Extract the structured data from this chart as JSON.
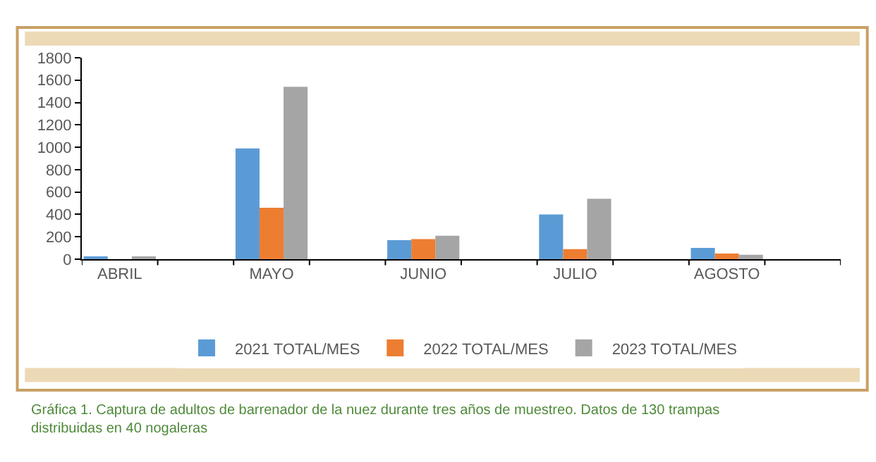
{
  "chart_data": {
    "type": "bar",
    "categories": [
      "ABRIL",
      null,
      "MAYO",
      null,
      "JUNIO",
      null,
      "JULIO",
      null,
      "AGOSTO",
      null
    ],
    "series": [
      {
        "name": "2021 TOTAL/MES",
        "color": "#5b9bd5",
        "values": [
          20,
          null,
          990,
          null,
          170,
          null,
          400,
          null,
          100,
          null
        ]
      },
      {
        "name": "2022 TOTAL/MES",
        "color": "#ed7d31",
        "values": [
          0,
          null,
          460,
          null,
          180,
          null,
          90,
          null,
          50,
          null
        ]
      },
      {
        "name": "2023 TOTAL/MES",
        "color": "#a5a5a5",
        "values": [
          20,
          null,
          1540,
          null,
          210,
          null,
          540,
          null,
          40,
          null
        ]
      }
    ],
    "ylim": [
      0,
      1800
    ],
    "yticks": [
      0,
      200,
      400,
      600,
      800,
      1000,
      1200,
      1400,
      1600,
      1800
    ],
    "legend": "bottom",
    "annotations": [
      "Gráfica 1. Captura de adultos de barrenador de la nuez durante tres años de muestreo. Datos de 130 trampas distribuidas en 40 nogaleras"
    ]
  }
}
